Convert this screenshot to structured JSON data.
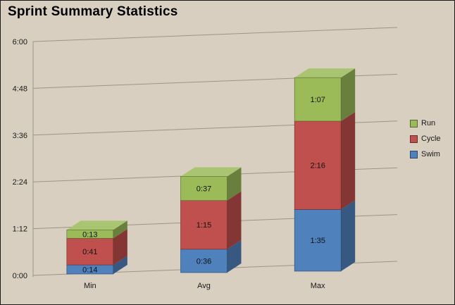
{
  "chart_data": {
    "type": "bar",
    "subtype": "stacked-3d",
    "title": "Sprint Summary Statistics",
    "categories": [
      "Min",
      "Avg",
      "Max"
    ],
    "series": [
      {
        "name": "Swim",
        "color": "#4F81BD",
        "labels": [
          "0:14",
          "0:36",
          "1:35"
        ],
        "values_minutes": [
          14,
          36,
          95
        ]
      },
      {
        "name": "Cycle",
        "color": "#C0504D",
        "labels": [
          "0:41",
          "1:15",
          "2:16"
        ],
        "values_minutes": [
          41,
          75,
          136
        ]
      },
      {
        "name": "Run",
        "color": "#9BBB59",
        "labels": [
          "0:13",
          "0:37",
          "1:07"
        ],
        "values_minutes": [
          13,
          37,
          67
        ]
      }
    ],
    "y_axis": {
      "ticks": [
        "0:00",
        "1:12",
        "2:24",
        "3:36",
        "4:48",
        "6:00"
      ],
      "tick_minutes": [
        0,
        72,
        144,
        216,
        288,
        360
      ],
      "min": 0,
      "max": 360,
      "format": "h:mm"
    },
    "x_axis": {
      "labels": [
        "Min",
        "Avg",
        "Max"
      ]
    },
    "legend": {
      "position": "right",
      "entries": [
        "Run",
        "Cycle",
        "Swim"
      ]
    },
    "background_color": "#D8CFC1",
    "gridline_color": "#9C9486",
    "text_color": "#1A1A1A"
  }
}
